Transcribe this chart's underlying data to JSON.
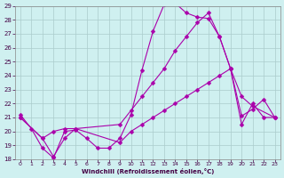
{
  "xlabel": "Windchill (Refroidissement éolien,°C)",
  "background_color": "#cff0f0",
  "grid_color": "#aacccc",
  "line_color": "#aa00aa",
  "xlim": [
    -0.5,
    23.5
  ],
  "ylim": [
    18,
    29
  ],
  "xticks": [
    0,
    1,
    2,
    3,
    4,
    5,
    6,
    7,
    8,
    9,
    10,
    11,
    12,
    13,
    14,
    15,
    16,
    17,
    18,
    19,
    20,
    21,
    22,
    23
  ],
  "yticks": [
    18,
    19,
    20,
    21,
    22,
    23,
    24,
    25,
    26,
    27,
    28,
    29
  ],
  "series1_x": [
    0,
    1,
    2,
    3,
    4,
    5,
    6,
    7,
    8,
    9,
    10,
    11,
    12,
    13,
    14,
    15,
    16,
    17,
    18,
    19,
    20,
    21,
    22,
    23
  ],
  "series1_y": [
    21.2,
    20.2,
    18.8,
    18.1,
    20.0,
    20.1,
    19.5,
    18.8,
    18.8,
    19.5,
    21.2,
    24.4,
    27.2,
    29.1,
    29.2,
    28.5,
    28.2,
    28.1,
    26.8,
    24.5,
    21.1,
    21.6,
    22.3,
    21.0
  ],
  "series2_x": [
    0,
    2,
    3,
    4,
    5,
    9,
    10,
    11,
    12,
    13,
    14,
    15,
    16,
    17,
    18,
    19,
    20,
    21,
    23
  ],
  "series2_y": [
    21.0,
    19.5,
    20.0,
    20.2,
    20.2,
    20.5,
    21.5,
    22.5,
    23.5,
    24.5,
    25.8,
    26.8,
    27.8,
    28.5,
    26.8,
    24.5,
    22.5,
    21.8,
    21.0
  ],
  "series3_x": [
    0,
    2,
    3,
    4,
    5,
    9,
    10,
    11,
    12,
    13,
    14,
    15,
    16,
    17,
    18,
    19,
    20,
    21,
    22,
    23
  ],
  "series3_y": [
    21.0,
    19.5,
    18.2,
    19.5,
    20.2,
    19.2,
    20.0,
    20.5,
    21.0,
    21.5,
    22.0,
    22.5,
    23.0,
    23.5,
    24.0,
    24.5,
    20.5,
    22.0,
    21.0,
    21.0
  ],
  "markersize": 2.5,
  "linewidth": 0.8
}
